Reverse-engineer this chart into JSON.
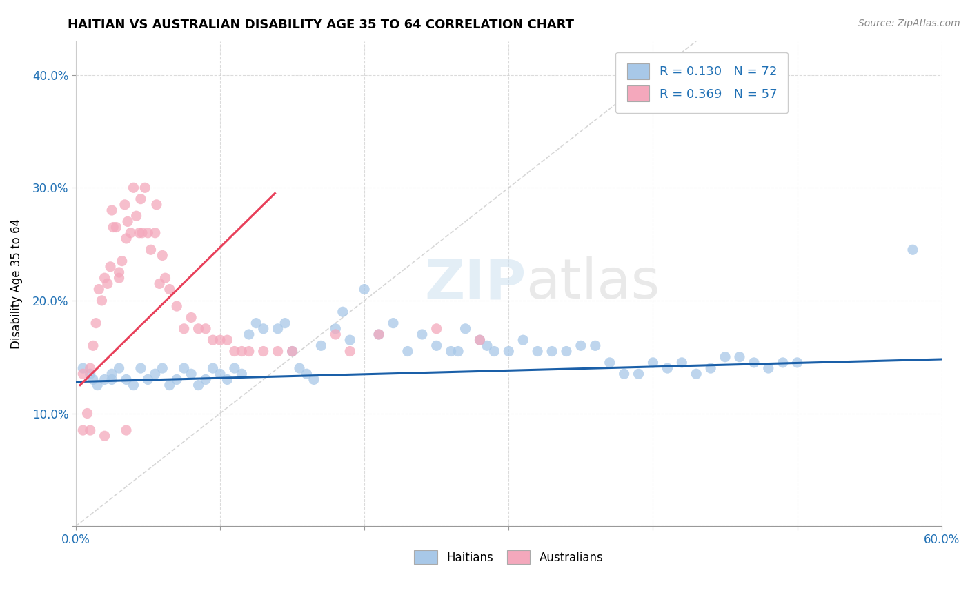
{
  "title": "HAITIAN VS AUSTRALIAN DISABILITY AGE 35 TO 64 CORRELATION CHART",
  "source_text": "Source: ZipAtlas.com",
  "ylabel": "Disability Age 35 to 64",
  "xlim": [
    0.0,
    0.6
  ],
  "ylim": [
    0.0,
    0.43
  ],
  "xticks": [
    0.0,
    0.1,
    0.2,
    0.3,
    0.4,
    0.5,
    0.6
  ],
  "yticks": [
    0.0,
    0.1,
    0.2,
    0.3,
    0.4
  ],
  "xticklabels": [
    "0.0%",
    "",
    "",
    "",
    "",
    "",
    "60.0%"
  ],
  "yticklabels": [
    "",
    "10.0%",
    "20.0%",
    "30.0%",
    "40.0%"
  ],
  "legend_r1": "R = 0.130",
  "legend_n1": "N = 72",
  "legend_r2": "R = 0.369",
  "legend_n2": "N = 57",
  "color_blue": "#a8c8e8",
  "color_pink": "#f4a8bc",
  "color_blue_line": "#1a5fa8",
  "color_pink_line": "#e8405a",
  "color_diag": "#cccccc",
  "watermark_color": "#ddeeff",
  "blue_dots_x": [
    0.005,
    0.01,
    0.012,
    0.015,
    0.02,
    0.025,
    0.025,
    0.03,
    0.035,
    0.04,
    0.045,
    0.05,
    0.055,
    0.06,
    0.065,
    0.07,
    0.075,
    0.08,
    0.085,
    0.09,
    0.095,
    0.1,
    0.105,
    0.11,
    0.115,
    0.12,
    0.125,
    0.13,
    0.14,
    0.145,
    0.15,
    0.155,
    0.16,
    0.165,
    0.17,
    0.18,
    0.185,
    0.19,
    0.2,
    0.21,
    0.22,
    0.23,
    0.24,
    0.25,
    0.26,
    0.265,
    0.27,
    0.28,
    0.285,
    0.29,
    0.3,
    0.31,
    0.32,
    0.33,
    0.34,
    0.35,
    0.36,
    0.37,
    0.38,
    0.39,
    0.4,
    0.41,
    0.42,
    0.43,
    0.44,
    0.45,
    0.46,
    0.47,
    0.48,
    0.49,
    0.5,
    0.58
  ],
  "blue_dots_y": [
    0.14,
    0.135,
    0.13,
    0.125,
    0.13,
    0.135,
    0.13,
    0.14,
    0.13,
    0.125,
    0.14,
    0.13,
    0.135,
    0.14,
    0.125,
    0.13,
    0.14,
    0.135,
    0.125,
    0.13,
    0.14,
    0.135,
    0.13,
    0.14,
    0.135,
    0.17,
    0.18,
    0.175,
    0.175,
    0.18,
    0.155,
    0.14,
    0.135,
    0.13,
    0.16,
    0.175,
    0.19,
    0.165,
    0.21,
    0.17,
    0.18,
    0.155,
    0.17,
    0.16,
    0.155,
    0.155,
    0.175,
    0.165,
    0.16,
    0.155,
    0.155,
    0.165,
    0.155,
    0.155,
    0.155,
    0.16,
    0.16,
    0.145,
    0.135,
    0.135,
    0.145,
    0.14,
    0.145,
    0.135,
    0.14,
    0.15,
    0.15,
    0.145,
    0.14,
    0.145,
    0.145,
    0.245
  ],
  "pink_dots_x": [
    0.005,
    0.008,
    0.01,
    0.012,
    0.014,
    0.016,
    0.018,
    0.02,
    0.022,
    0.024,
    0.025,
    0.026,
    0.028,
    0.03,
    0.03,
    0.032,
    0.034,
    0.035,
    0.036,
    0.038,
    0.04,
    0.042,
    0.044,
    0.045,
    0.046,
    0.048,
    0.05,
    0.052,
    0.055,
    0.056,
    0.058,
    0.06,
    0.062,
    0.065,
    0.07,
    0.075,
    0.08,
    0.085,
    0.09,
    0.095,
    0.1,
    0.105,
    0.11,
    0.115,
    0.12,
    0.13,
    0.14,
    0.15,
    0.18,
    0.19,
    0.21,
    0.25,
    0.28,
    0.005,
    0.01,
    0.02,
    0.035
  ],
  "pink_dots_y": [
    0.135,
    0.1,
    0.14,
    0.16,
    0.18,
    0.21,
    0.2,
    0.22,
    0.215,
    0.23,
    0.28,
    0.265,
    0.265,
    0.225,
    0.22,
    0.235,
    0.285,
    0.255,
    0.27,
    0.26,
    0.3,
    0.275,
    0.26,
    0.29,
    0.26,
    0.3,
    0.26,
    0.245,
    0.26,
    0.285,
    0.215,
    0.24,
    0.22,
    0.21,
    0.195,
    0.175,
    0.185,
    0.175,
    0.175,
    0.165,
    0.165,
    0.165,
    0.155,
    0.155,
    0.155,
    0.155,
    0.155,
    0.155,
    0.17,
    0.155,
    0.17,
    0.175,
    0.165,
    0.085,
    0.085,
    0.08,
    0.085
  ],
  "pink_line_x0": 0.003,
  "pink_line_y0": 0.125,
  "pink_line_x1": 0.138,
  "pink_line_y1": 0.295,
  "blue_line_x0": 0.0,
  "blue_line_y0": 0.128,
  "blue_line_x1": 0.6,
  "blue_line_y1": 0.148
}
